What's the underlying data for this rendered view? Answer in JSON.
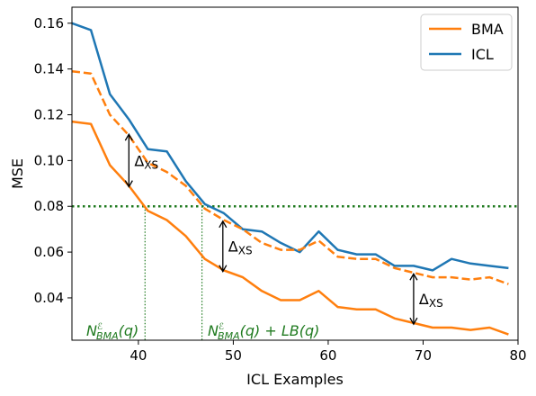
{
  "chart_data": {
    "type": "line",
    "xlabel": "ICL Examples",
    "ylabel": "MSE",
    "xlim": [
      33,
      80
    ],
    "ylim": [
      0.0215,
      0.167
    ],
    "xticks": [
      40,
      50,
      60,
      70,
      80
    ],
    "xtick_labels": [
      "40",
      "50",
      "60",
      "70",
      "80"
    ],
    "yticks": [
      0.04,
      0.06,
      0.08,
      0.1,
      0.12,
      0.14,
      0.16
    ],
    "ytick_labels": [
      "0.04",
      "0.06",
      "0.08",
      "0.10",
      "0.12",
      "0.14",
      "0.16"
    ],
    "grid": false,
    "legend_position": "top-right",
    "series": [
      {
        "name": "BMA",
        "color": "#ff7f0e",
        "style": "solid",
        "x": [
          33,
          35,
          37,
          39,
          41,
          43,
          45,
          47,
          49,
          51,
          53,
          55,
          57,
          59,
          61,
          63,
          65,
          67,
          69,
          71,
          73,
          75,
          77,
          79
        ],
        "y": [
          0.117,
          0.116,
          0.098,
          0.089,
          0.078,
          0.074,
          0.067,
          0.057,
          0.052,
          0.049,
          0.043,
          0.039,
          0.039,
          0.043,
          0.036,
          0.035,
          0.035,
          0.031,
          0.029,
          0.027,
          0.027,
          0.026,
          0.027,
          0.024
        ]
      },
      {
        "name": "ICL",
        "color": "#1f77b4",
        "style": "solid",
        "x": [
          33,
          35,
          37,
          39,
          41,
          43,
          45,
          47,
          49,
          51,
          53,
          55,
          57,
          59,
          61,
          63,
          65,
          67,
          69,
          71,
          73,
          75,
          77,
          79
        ],
        "y": [
          0.16,
          0.157,
          0.129,
          0.118,
          0.105,
          0.104,
          0.091,
          0.081,
          0.077,
          0.07,
          0.069,
          0.064,
          0.06,
          0.069,
          0.061,
          0.059,
          0.059,
          0.054,
          0.054,
          0.052,
          0.057,
          0.055,
          0.054,
          0.053
        ]
      },
      {
        "color": "#ff7f0e",
        "style": "dashed",
        "x": [
          33,
          35,
          37,
          39,
          41,
          43,
          45,
          47,
          49,
          51,
          53,
          55,
          57,
          59,
          61,
          63,
          65,
          67,
          69,
          71,
          73,
          75,
          77,
          79
        ],
        "y": [
          0.139,
          0.138,
          0.12,
          0.111,
          0.099,
          0.095,
          0.089,
          0.079,
          0.074,
          0.07,
          0.064,
          0.061,
          0.061,
          0.065,
          0.058,
          0.057,
          0.057,
          0.053,
          0.051,
          0.049,
          0.049,
          0.048,
          0.049,
          0.046
        ]
      }
    ],
    "hline": {
      "y": 0.08,
      "color": "#1f7a1f",
      "style": "dotted"
    },
    "vlines": [
      {
        "x": 40.7,
        "color": "#1f7a1f",
        "style": "dotted"
      },
      {
        "x": 46.7,
        "color": "#1f7a1f",
        "style": "dotted"
      }
    ],
    "annotations": {
      "vline1_label": {
        "prefix": "N",
        "sup": "ℰ",
        "sub": "BMA",
        "suffix": "(q)"
      },
      "vline2_label": {
        "prefix": "N",
        "sup": "ℰ",
        "sub": "BMA",
        "suffix": "(q) + LB(q)"
      },
      "delta_symbol": "Δ",
      "delta_subscript": "XS",
      "deltas": [
        {
          "x": 39.0,
          "y_top": 0.1115,
          "y_bottom": 0.0885
        },
        {
          "x": 48.9,
          "y_top": 0.0735,
          "y_bottom": 0.0515
        },
        {
          "x": 69.0,
          "y_top": 0.0505,
          "y_bottom": 0.0285
        }
      ]
    }
  }
}
